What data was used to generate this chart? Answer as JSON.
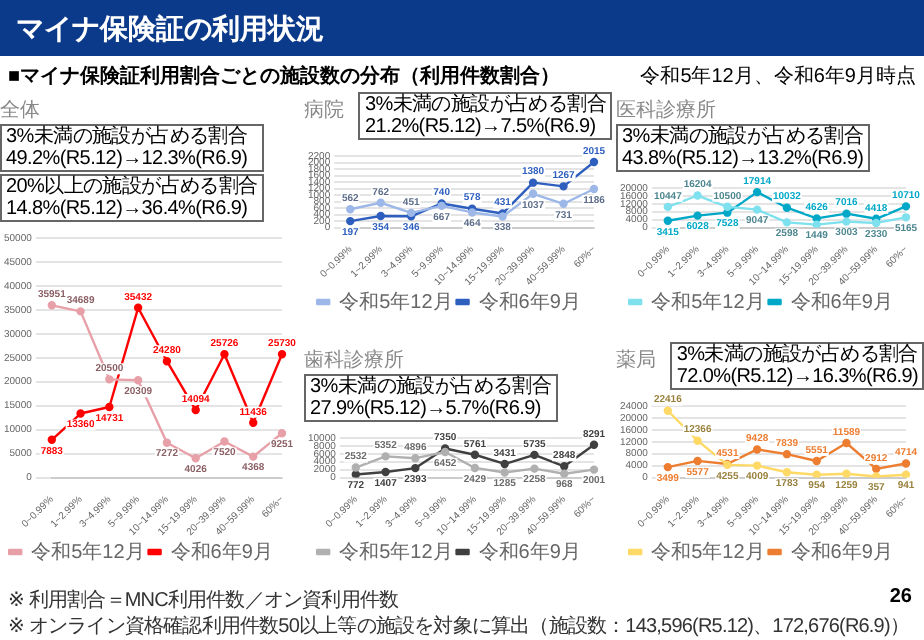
{
  "chart_data": [
    {
      "type": "other",
      "title": "マイナ保険証の利用状況",
      "subtitle": "■マイナ保険証利用割合ごとの施設数の分布（利用件数割合）",
      "annotations": [
        "令和5年12月、令和6年9月時点",
        "※ 利用割合＝MNC利用件数／オン資利用件数",
        "※ オンライン資格確認利用件数50以上等の施設を対象に算出（施設数：143,596(R5.12)、172,676(R6.9)）",
        "26"
      ]
    },
    {
      "type": "line",
      "title": "全体",
      "annotations": [
        "3%未満の施設が占める割合",
        "49.2%(R5.12)→12.3%(R6.9)",
        "20%以上の施設が占める割合",
        "14.8%(R5.12)→36.4%(R6.9)"
      ],
      "categories": [
        "0~0.99%",
        "1~2.99%",
        "3~4.99%",
        "5~9.99%",
        "10~14.99%",
        "15~19.99%",
        "20~39.99%",
        "40~59.99%",
        "60%~"
      ],
      "series": [
        {
          "name": "令和5年12月",
          "color": "#e8a0a8",
          "values": [
            35951,
            34689,
            20500,
            20309,
            7272,
            4026,
            7520,
            4368,
            9251
          ]
        },
        {
          "name": "令和6年9月",
          "color": "#ff0000",
          "values": [
            7883,
            13360,
            14731,
            35432,
            24280,
            14094,
            25726,
            11436,
            25730
          ]
        }
      ],
      "ylim": [
        0,
        50000
      ],
      "yticks": [
        0,
        5000,
        10000,
        15000,
        20000,
        25000,
        30000,
        35000,
        40000,
        45000,
        50000
      ],
      "grid": "y",
      "legend": "bottom",
      "marker": "circle",
      "line_style": "solid",
      "data_labels": true
    },
    {
      "type": "line",
      "title": "病院",
      "annotations": [
        "3%未満の施設が占める割合",
        "21.2%(R5.12)→7.5%(R6.9)"
      ],
      "categories": [
        "0~0.99%",
        "1~2.99%",
        "3~4.99%",
        "5~9.99%",
        "10~14.99%",
        "15~19.99%",
        "20~39.99%",
        "40~59.99%",
        "60%~"
      ],
      "series": [
        {
          "name": "令和5年12月",
          "color": "#9db8e8",
          "values": [
            562,
            762,
            451,
            667,
            464,
            338,
            1037,
            731,
            1186
          ]
        },
        {
          "name": "令和6年9月",
          "color": "#2e5fbf",
          "values": [
            197,
            354,
            346,
            740,
            578,
            431,
            1380,
            1267,
            2015
          ]
        }
      ],
      "ylim": [
        0,
        2200
      ],
      "yticks": [
        0,
        200,
        400,
        600,
        800,
        1000,
        1200,
        1400,
        1600,
        1800,
        2000,
        2200
      ],
      "grid": "y",
      "legend": "bottom",
      "marker": "circle",
      "line_style": "solid",
      "data_labels": true
    },
    {
      "type": "line",
      "title": "医科診療所",
      "annotations": [
        "3%未満の施設が占める割合",
        "43.8%(R5.12)→13.2%(R6.9)"
      ],
      "categories": [
        "0~0.99%",
        "1~2.99%",
        "3~4.99%",
        "5~9.99%",
        "10~14.99%",
        "15~19.99%",
        "20~39.99%",
        "40~59.99%",
        "60%~"
      ],
      "series": [
        {
          "name": "令和5年12月",
          "color": "#7fe0ee",
          "values": [
            10447,
            16204,
            10500,
            9047,
            2598,
            1449,
            3003,
            2330,
            5165
          ]
        },
        {
          "name": "令和6年9月",
          "color": "#00a8c8",
          "values": [
            3415,
            6028,
            7528,
            17914,
            10032,
            4626,
            7016,
            4418,
            10710
          ]
        }
      ],
      "ylim": [
        0,
        20000
      ],
      "yticks": [
        0,
        4000,
        8000,
        12000,
        16000,
        20000
      ],
      "grid": "y",
      "legend": "bottom",
      "marker": "circle",
      "line_style": "solid",
      "data_labels": true
    },
    {
      "type": "line",
      "title": "歯科診療所",
      "annotations": [
        "3%未満の施設が占める割合",
        "27.9%(R5.12)→5.7%(R6.9)"
      ],
      "categories": [
        "0~0.99%",
        "1~2.99%",
        "3~4.99%",
        "5~9.99%",
        "10~14.99%",
        "15~19.99%",
        "20~39.99%",
        "40~59.99%",
        "60%~"
      ],
      "series": [
        {
          "name": "令和5年12月",
          "color": "#b0b0b0",
          "values": [
            2532,
            5352,
            4896,
            6452,
            2429,
            1285,
            2258,
            968,
            2001
          ]
        },
        {
          "name": "令和6年9月",
          "color": "#404040",
          "values": [
            772,
            1407,
            2393,
            7350,
            5761,
            3431,
            5735,
            2848,
            8291
          ]
        }
      ],
      "ylim": [
        0,
        10000
      ],
      "yticks": [
        0,
        2000,
        4000,
        6000,
        8000,
        10000
      ],
      "grid": "y",
      "legend": "bottom",
      "marker": "circle",
      "line_style": "solid",
      "data_labels": true
    },
    {
      "type": "line",
      "title": "薬局",
      "annotations": [
        "3%未満の施設が占める割合",
        "72.0%(R5.12)→16.3%(R6.9)"
      ],
      "categories": [
        "0~0.99%",
        "1~2.99%",
        "3~4.99%",
        "5~9.99%",
        "10~14.99%",
        "15~19.99%",
        "20~39.99%",
        "40~59.99%",
        "60%~"
      ],
      "series": [
        {
          "name": "令和5年12月",
          "color": "#ffd966",
          "values": [
            22416,
            12366,
            4255,
            4009,
            1783,
            954,
            1259,
            357,
            941
          ]
        },
        {
          "name": "令和6年9月",
          "color": "#ed7d31",
          "values": [
            3499,
            5577,
            4531,
            9428,
            7839,
            5551,
            11589,
            2912,
            4714
          ]
        }
      ],
      "ylim": [
        0,
        24000
      ],
      "yticks": [
        0,
        4000,
        8000,
        12000,
        16000,
        20000,
        24000
      ],
      "grid": "y",
      "legend": "bottom",
      "marker": "circle",
      "line_style": "solid",
      "data_labels": true
    }
  ]
}
